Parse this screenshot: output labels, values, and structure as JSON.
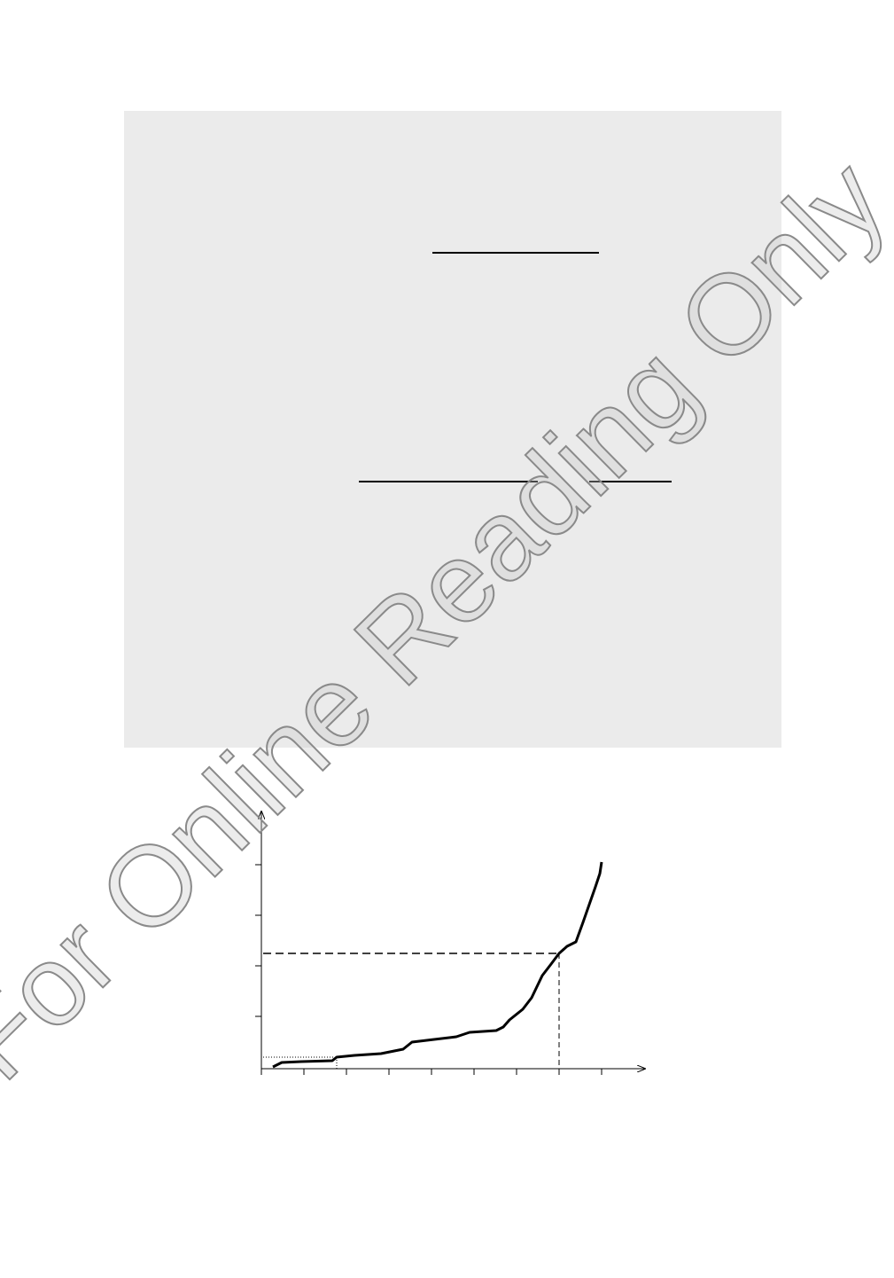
{
  "watermark": "For Online Reading Only"
}
